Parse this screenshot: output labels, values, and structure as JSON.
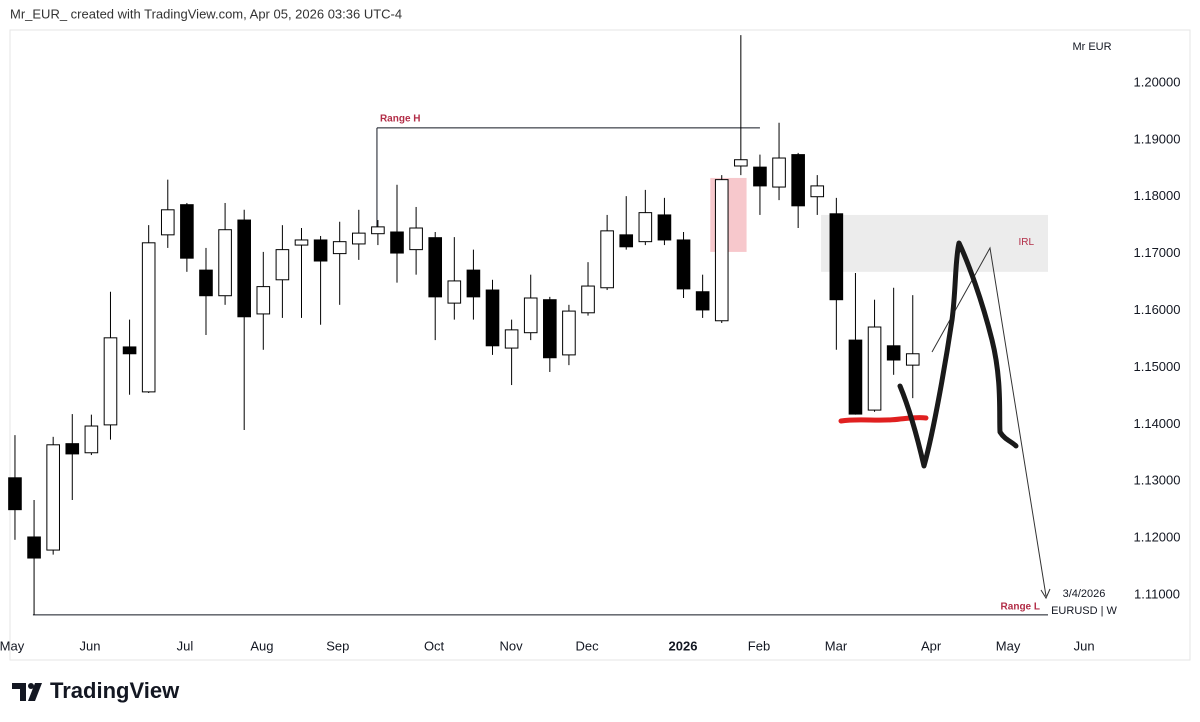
{
  "chart_data": {
    "type": "candlestick",
    "header": "Mr_EUR_ created with TradingView.com, Apr 05, 2026 03:36 UTC-4",
    "scale_label": "Mr EUR",
    "date_label": "3/4/2026",
    "symbol": "EURUSD | W",
    "brand": "TradingView",
    "categories": [
      null,
      null,
      null,
      null,
      null,
      null,
      null,
      null,
      null,
      null,
      null,
      null,
      null,
      null,
      null,
      null,
      null,
      null,
      null,
      null,
      null,
      null,
      null,
      null,
      null,
      null,
      null,
      null,
      null,
      null,
      null,
      null,
      null,
      null,
      null,
      null,
      null,
      null,
      null,
      null,
      null,
      null,
      null,
      null,
      null,
      null,
      null,
      null
    ],
    "open": [
      1.1306,
      1.1202,
      1.1179,
      1.1366,
      1.135,
      1.1399,
      1.1536,
      1.1457,
      1.1733,
      1.1786,
      1.1671,
      1.1626,
      1.1759,
      1.1594,
      1.1654,
      1.1715,
      1.1724,
      1.17,
      1.1717,
      1.1735,
      1.1738,
      1.1707,
      1.1728,
      1.1613,
      1.1671,
      1.1636,
      1.1534,
      1.1561,
      1.1619,
      1.1522,
      1.1596,
      1.164,
      1.1733,
      1.1721,
      1.1768,
      1.1724,
      1.1633,
      1.1582,
      1.1854,
      1.1852,
      1.1817,
      1.1874,
      1.18,
      1.177,
      1.1548,
      1.1425,
      1.1538,
      1.1504
    ],
    "high": [
      1.1381,
      1.1267,
      1.1378,
      1.1418,
      1.1417,
      1.1633,
      1.1584,
      1.175,
      1.183,
      1.1789,
      1.171,
      1.1789,
      1.1777,
      1.1703,
      1.175,
      1.1745,
      1.1731,
      1.1756,
      1.1777,
      1.1759,
      1.1821,
      1.1782,
      1.1738,
      1.1729,
      1.1707,
      1.1654,
      1.1584,
      1.1663,
      1.1624,
      1.161,
      1.1685,
      1.1768,
      1.1801,
      1.1812,
      1.1798,
      1.1738,
      1.1663,
      1.1838,
      1.2084,
      1.1874,
      1.193,
      1.1877,
      1.1838,
      1.1798,
      1.1666,
      1.1619,
      1.164,
      1.1627
    ],
    "low": [
      1.1197,
      1.1065,
      1.1171,
      1.1267,
      1.1346,
      1.1373,
      1.1452,
      1.1455,
      1.171,
      1.1668,
      1.1557,
      1.161,
      1.139,
      1.1531,
      1.1587,
      1.1587,
      1.1575,
      1.161,
      1.1689,
      1.1715,
      1.1649,
      1.1663,
      1.1548,
      1.1584,
      1.1584,
      1.1522,
      1.1469,
      1.1548,
      1.1492,
      1.1504,
      1.1591,
      1.1636,
      1.1707,
      1.1715,
      1.1715,
      1.1622,
      1.1587,
      1.1578,
      1.1838,
      1.1768,
      1.1794,
      1.1745,
      1.1768,
      1.1531,
      1.1417,
      1.1422,
      1.1487,
      1.1446
    ],
    "close": [
      1.125,
      1.1165,
      1.1364,
      1.1348,
      1.1397,
      1.1552,
      1.1524,
      1.1719,
      1.1777,
      1.1692,
      1.1626,
      1.1742,
      1.1589,
      1.1642,
      1.1707,
      1.1724,
      1.1687,
      1.1721,
      1.1736,
      1.1747,
      1.1701,
      1.1745,
      1.1624,
      1.1652,
      1.1624,
      1.1538,
      1.1566,
      1.1622,
      1.1517,
      1.1599,
      1.1643,
      1.174,
      1.1712,
      1.1772,
      1.1724,
      1.1638,
      1.1601,
      1.183,
      1.1865,
      1.1819,
      1.1868,
      1.1784,
      1.1819,
      1.1619,
      1.1418,
      1.1571,
      1.1513,
      1.1524
    ],
    "up_color": "#ffffff",
    "down_color": "#000000",
    "wick_color": "#000000",
    "xlim": [
      -0.26,
      54.08
    ],
    "ylim": [
      1.1035,
      1.2093
    ],
    "xticks": [
      {
        "value": -0.16,
        "label": "May"
      },
      {
        "value": 3.93,
        "label": "Jun"
      },
      {
        "value": 8.9,
        "label": "Jul"
      },
      {
        "value": 12.93,
        "label": "Aug"
      },
      {
        "value": 16.9,
        "label": "Sep"
      },
      {
        "value": 21.94,
        "label": "Oct"
      },
      {
        "value": 25.97,
        "label": "Nov"
      },
      {
        "value": 29.95,
        "label": "Dec"
      },
      {
        "value": 34.97,
        "label": "2026"
      },
      {
        "value": 38.95,
        "label": "Feb"
      },
      {
        "value": 42.98,
        "label": "Mar"
      },
      {
        "value": 47.96,
        "label": "Apr"
      },
      {
        "value": 51.99,
        "label": "May"
      },
      {
        "value": 55.97,
        "label": "Jun"
      }
    ],
    "yticks": [
      {
        "value": 1.2,
        "label": "1.20000"
      },
      {
        "value": 1.19,
        "label": "1.19000"
      },
      {
        "value": 1.18,
        "label": "1.18000"
      },
      {
        "value": 1.17,
        "label": "1.17000"
      },
      {
        "value": 1.16,
        "label": "1.16000"
      },
      {
        "value": 1.15,
        "label": "1.15000"
      },
      {
        "value": 1.14,
        "label": "1.14000"
      },
      {
        "value": 1.13,
        "label": "1.13000"
      },
      {
        "value": 1.12,
        "label": "1.12000"
      },
      {
        "value": 1.11,
        "label": "1.11000"
      }
    ],
    "grid": false,
    "levels": [
      {
        "label": "Range H",
        "y": 1.1921,
        "x": [
          18.95,
          39.0
        ],
        "anchor_y": 1.1742,
        "label_color": "#b22d47"
      },
      {
        "label": "Range L",
        "y": 1.1065,
        "x": [
          0.94,
          54.08
        ],
        "label_color": "#b22d47"
      }
    ],
    "zones": [
      {
        "label": "IRL",
        "x": [
          42.2,
          54.08
        ],
        "y": [
          1.1668,
          1.1768
        ],
        "color": "#ececec",
        "label_color": "#b22d47"
      },
      {
        "x": [
          36.4,
          38.3
        ],
        "y": [
          1.1703,
          1.1833
        ],
        "color": "#f7c8cc"
      }
    ]
  }
}
